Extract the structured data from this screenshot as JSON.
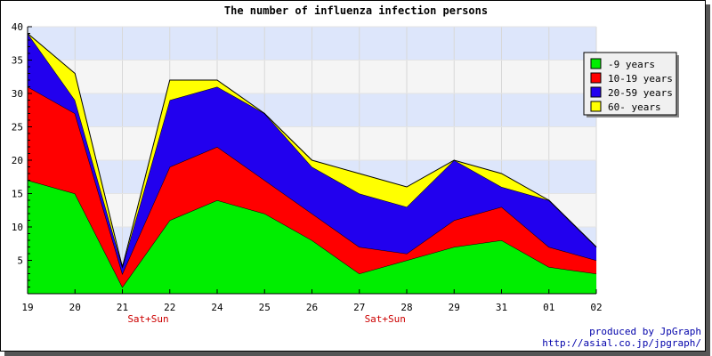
{
  "chart_data": {
    "type": "area",
    "stacked": true,
    "title": "The number of influenza infection persons",
    "xlabel": "",
    "ylabel": "",
    "categories": [
      "19",
      "20",
      "21",
      "22",
      "24",
      "25",
      "26",
      "27",
      "28",
      "29",
      "31",
      "01",
      "02"
    ],
    "category_notes": [
      {
        "category": "21",
        "text": "Sat+Sun"
      },
      {
        "category": "27",
        "text": "Sat+Sun"
      }
    ],
    "ylim": [
      0,
      40
    ],
    "yticks": [
      5,
      10,
      15,
      20,
      25,
      30,
      35,
      40
    ],
    "grid": true,
    "legend_position": "top-right",
    "series": [
      {
        "name": "-9 years",
        "color": "#00ee00",
        "values": [
          17,
          15,
          1,
          11,
          14,
          12,
          8,
          3,
          5,
          7,
          8,
          4,
          3
        ]
      },
      {
        "name": "10-19 years",
        "color": "#ff0000",
        "values": [
          14,
          12,
          2,
          8,
          8,
          5,
          4,
          4,
          1,
          4,
          5,
          3,
          2
        ]
      },
      {
        "name": "20-59 years",
        "color": "#2200ee",
        "values": [
          8,
          2,
          1,
          10,
          9,
          10,
          7,
          8,
          7,
          9,
          3,
          7,
          2
        ]
      },
      {
        "name": "60- years",
        "color": "#ffff00",
        "values": [
          0,
          4,
          0,
          3,
          1,
          0,
          1,
          3,
          3,
          0,
          2,
          0,
          0
        ]
      }
    ]
  },
  "credits": {
    "line1": "produced by JpGraph",
    "line2": "http://asial.co.jp/jpgraph/"
  }
}
